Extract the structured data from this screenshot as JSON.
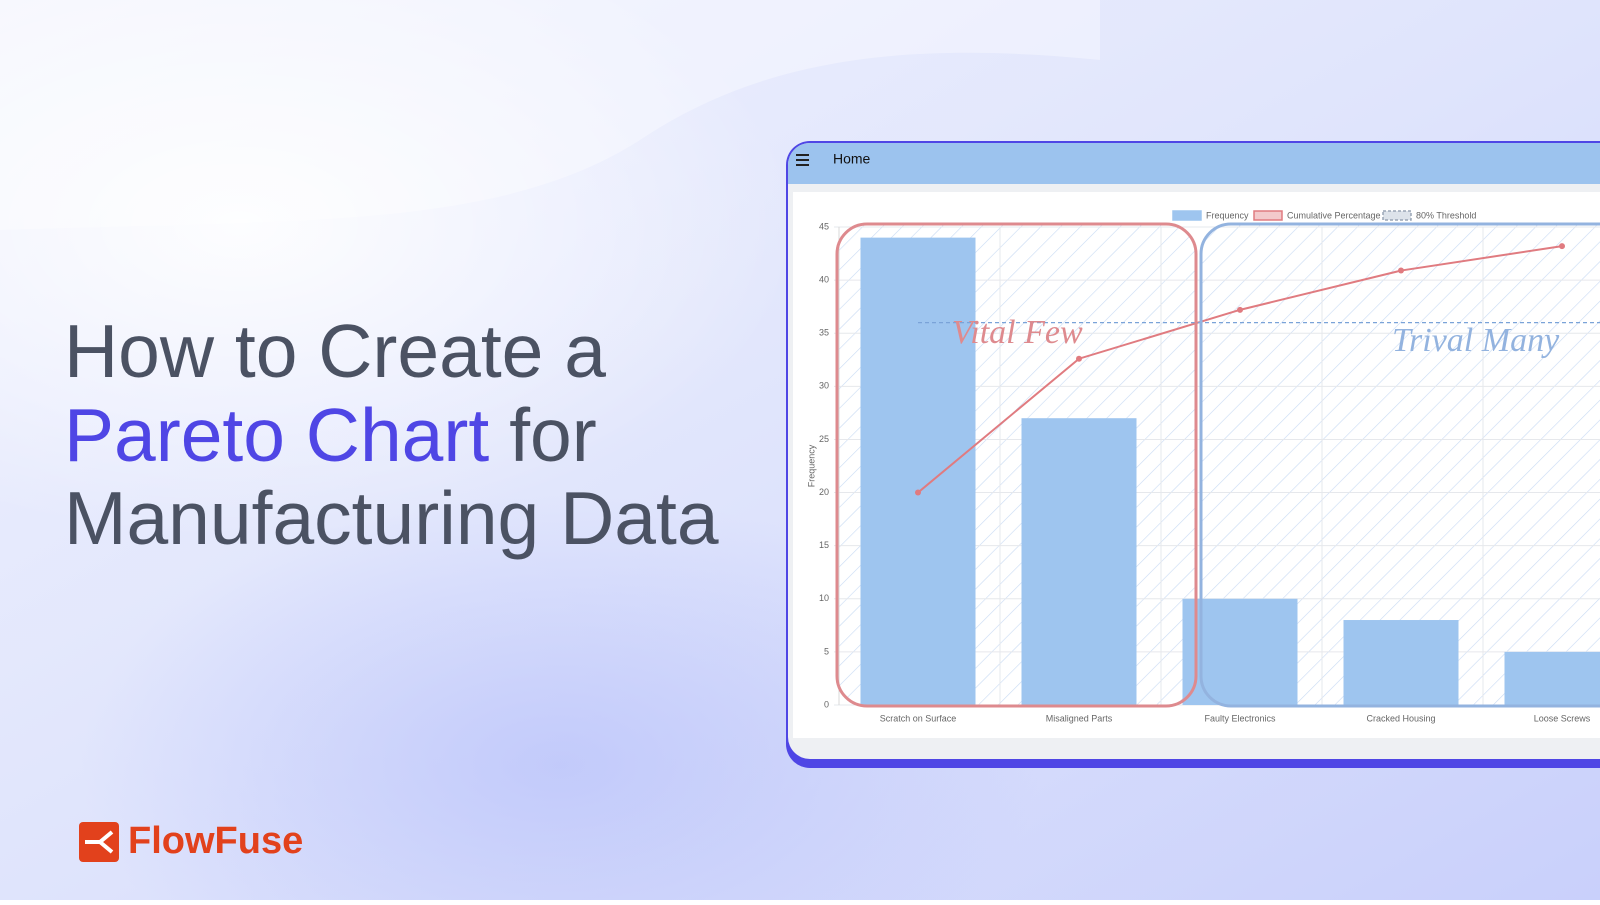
{
  "headline": {
    "line1": "How to Create a",
    "highlight": "Pareto Chart",
    "line2_rest": "for",
    "line3": "Manufacturing Data"
  },
  "brand": "FlowFuse",
  "app": {
    "menu_title": "Home"
  },
  "chart_data": {
    "type": "bar",
    "categories": [
      "Scratch on Surface",
      "Misaligned Parts",
      "Faulty Electronics",
      "Cracked Housing",
      "Loose Screws"
    ],
    "series": [
      {
        "name": "Frequency",
        "color": "#9ec5ef",
        "values": [
          44,
          27,
          10,
          8,
          5
        ]
      },
      {
        "name": "Cumulative Percentage",
        "color": "#e07b80",
        "type": "line",
        "values": [
          20,
          32.6,
          37.2,
          40.9,
          43.2
        ]
      }
    ],
    "threshold": {
      "name": "80% Threshold",
      "value": 36,
      "color": "#7aa3d8"
    },
    "y_label": "Frequency",
    "ylim": [
      0,
      45
    ],
    "yticks": [
      0,
      5,
      10,
      15,
      20,
      25,
      30,
      35,
      40,
      45
    ],
    "grid": true,
    "annotations": [
      {
        "text": "Vital Few",
        "color": "#de8a8e"
      },
      {
        "text": "Trival Many",
        "color": "#93b3df"
      }
    ]
  }
}
